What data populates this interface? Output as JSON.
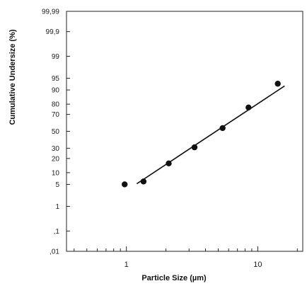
{
  "chart_data": {
    "type": "scatter",
    "xlabel": "Particle Size (µm)",
    "ylabel": "Cumulative Undersize (%)",
    "x_scale": "log",
    "y_scale": "probability",
    "xlim": [
      0.35,
      22
    ],
    "ylim": [
      0.01,
      99.99
    ],
    "x_ticks": [
      {
        "value": 1,
        "label": "1"
      },
      {
        "value": 10,
        "label": "10"
      }
    ],
    "y_ticks": [
      {
        "value": 0.01,
        "label": ",01"
      },
      {
        "value": 0.1,
        "label": ",1"
      },
      {
        "value": 1,
        "label": "1"
      },
      {
        "value": 5,
        "label": "5"
      },
      {
        "value": 10,
        "label": "10"
      },
      {
        "value": 20,
        "label": "20"
      },
      {
        "value": 30,
        "label": "30"
      },
      {
        "value": 50,
        "label": "50"
      },
      {
        "value": 70,
        "label": "70"
      },
      {
        "value": 80,
        "label": "80"
      },
      {
        "value": 90,
        "label": "90"
      },
      {
        "value": 95,
        "label": "95"
      },
      {
        "value": 99,
        "label": "99"
      },
      {
        "value": 99.9,
        "label": "99,9"
      },
      {
        "value": 99.99,
        "label": "99,99"
      }
    ],
    "series": [
      {
        "points": [
          {
            "x": 0.97,
            "y": 5
          },
          {
            "x": 1.35,
            "y": 6
          },
          {
            "x": 2.1,
            "y": 16
          },
          {
            "x": 3.3,
            "y": 31
          },
          {
            "x": 5.4,
            "y": 54
          },
          {
            "x": 8.5,
            "y": 77
          },
          {
            "x": 14.2,
            "y": 93
          }
        ]
      }
    ],
    "fit_line": {
      "x": [
        1.2,
        16
      ],
      "y": [
        5.2,
        92
      ]
    },
    "grid": false,
    "colors": {
      "points": "#111111",
      "line": "#111111",
      "axis": "#222222"
    }
  }
}
